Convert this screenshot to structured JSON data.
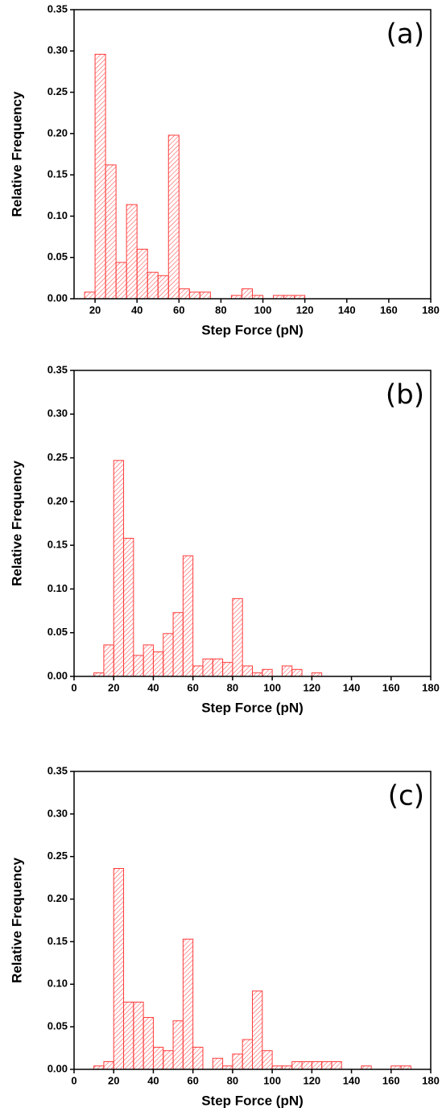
{
  "chart_data": [
    {
      "type": "histogram",
      "annotation": "(a)",
      "x_label": "Step Force (pN)",
      "y_label": "Relative Frequency",
      "color": "#ff3b3b",
      "bins": [
        15,
        20,
        25,
        30,
        35,
        40,
        45,
        50,
        55,
        60,
        65,
        70,
        75,
        80,
        85,
        90,
        95,
        100,
        105,
        110,
        115,
        120
      ],
      "counts": [
        0.008,
        0.296,
        0.162,
        0.044,
        0.114,
        0.06,
        0.032,
        0.028,
        0.198,
        0.012,
        0.008,
        0.008,
        0,
        0,
        0.004,
        0.012,
        0.004,
        0,
        0.004,
        0.004,
        0.004
      ],
      "xlim": [
        10,
        180
      ],
      "xticks": [
        20,
        40,
        60,
        80,
        100,
        120,
        140,
        160,
        180
      ],
      "ylim": [
        0,
        0.35
      ],
      "yticks": [
        {
          "value": 0,
          "label": "0.00"
        },
        {
          "value": 0.05,
          "label": "0.05"
        },
        {
          "value": 0.1,
          "label": "0.10"
        },
        {
          "value": 0.15,
          "label": "0.15"
        },
        {
          "value": 0.2,
          "label": "0.20"
        },
        {
          "value": 0.25,
          "label": "0.25"
        },
        {
          "value": 0.3,
          "label": "0.30"
        },
        {
          "value": 0.35,
          "label": "0.35"
        }
      ]
    },
    {
      "type": "histogram",
      "annotation": "(b)",
      "x_label": "Step Force (pN)",
      "y_label": "Relative Frequency",
      "color": "#ff3b3b",
      "bins": [
        10,
        15,
        20,
        25,
        30,
        35,
        40,
        45,
        50,
        55,
        60,
        65,
        70,
        75,
        80,
        85,
        90,
        95,
        100,
        105,
        110,
        115,
        120,
        125
      ],
      "counts": [
        0.004,
        0.036,
        0.247,
        0.158,
        0.024,
        0.036,
        0.028,
        0.049,
        0.073,
        0.138,
        0.012,
        0.02,
        0.02,
        0.016,
        0.089,
        0.012,
        0.004,
        0.008,
        0,
        0.012,
        0.008,
        0,
        0.004
      ],
      "xlim": [
        0,
        180
      ],
      "xticks": [
        0,
        20,
        40,
        60,
        80,
        100,
        120,
        140,
        160,
        180
      ],
      "ylim": [
        0,
        0.35
      ],
      "yticks": [
        {
          "value": 0,
          "label": "0.00"
        },
        {
          "value": 0.05,
          "label": "0.05"
        },
        {
          "value": 0.1,
          "label": "0.10"
        },
        {
          "value": 0.15,
          "label": "0.15"
        },
        {
          "value": 0.2,
          "label": "0.20"
        },
        {
          "value": 0.25,
          "label": "0.25"
        },
        {
          "value": 0.3,
          "label": "0.30"
        },
        {
          "value": 0.35,
          "label": "0.35"
        }
      ]
    },
    {
      "type": "histogram",
      "annotation": "(c)",
      "x_label": "Step Force (pN)",
      "y_label": "Relative Frequency",
      "color": "#ff3b3b",
      "bins": [
        10,
        15,
        20,
        25,
        30,
        35,
        40,
        45,
        50,
        55,
        60,
        65,
        70,
        75,
        80,
        85,
        90,
        95,
        100,
        105,
        110,
        115,
        120,
        125,
        130,
        135,
        140,
        145,
        150,
        155,
        160,
        165,
        170
      ],
      "counts": [
        0.004,
        0.009,
        0.236,
        0.079,
        0.079,
        0.061,
        0.026,
        0.022,
        0.057,
        0.153,
        0.026,
        0,
        0.013,
        0.004,
        0.018,
        0.035,
        0.092,
        0.022,
        0.004,
        0.004,
        0.009,
        0.009,
        0.009,
        0.009,
        0.009,
        0,
        0,
        0.004,
        0,
        0,
        0.004,
        0.004
      ],
      "xlim": [
        0,
        180
      ],
      "xticks": [
        0,
        20,
        40,
        60,
        80,
        100,
        120,
        140,
        160,
        180
      ],
      "ylim": [
        0,
        0.35
      ],
      "yticks": [
        {
          "value": 0,
          "label": "0.00"
        },
        {
          "value": 0.05,
          "label": "0.05"
        },
        {
          "value": 0.1,
          "label": "0.10"
        },
        {
          "value": 0.15,
          "label": "0.15"
        },
        {
          "value": 0.2,
          "label": "0.20"
        },
        {
          "value": 0.25,
          "label": "0.25"
        },
        {
          "value": 0.3,
          "label": "0.30"
        },
        {
          "value": 0.35,
          "label": "0.35"
        }
      ]
    }
  ]
}
